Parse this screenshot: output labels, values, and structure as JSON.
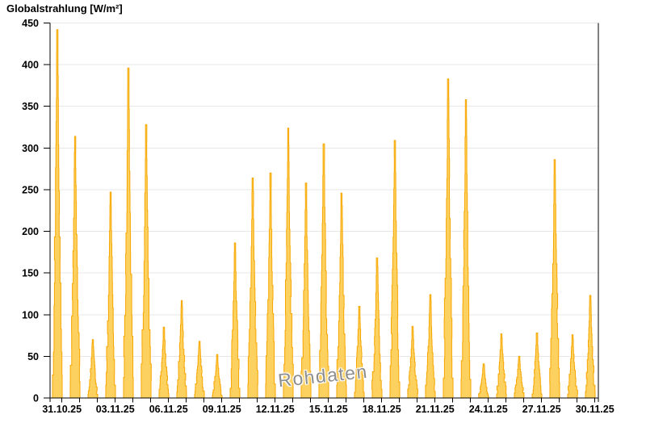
{
  "header": {
    "title": "Globalstrahlung [W/m²]"
  },
  "watermark": {
    "text": "Rohdaten",
    "color": "#8d8d8d"
  },
  "chart_data": {
    "type": "area",
    "title": "Globalstrahlung [W/m²]",
    "xlabel": "",
    "ylabel": "Globalstrahlung [W/m²]",
    "unit": "W/m²",
    "ylim": [
      0,
      450
    ],
    "ytick_step": 50,
    "ytick_labels": [
      "0",
      "50",
      "100",
      "150",
      "200",
      "250",
      "300",
      "350",
      "400",
      "450"
    ],
    "grid": true,
    "legend": "none",
    "xtick_label_every": 3,
    "xtick_labels_shown": [
      "31.10.25",
      "03.11.25",
      "06.11.25",
      "09.11.25",
      "12.11.25",
      "15.11.25",
      "18.11.25",
      "21.11.25",
      "24.11.25",
      "27.11.25",
      "30.11.25"
    ],
    "x": [
      "31.10.25",
      "01.11.25",
      "02.11.25",
      "03.11.25",
      "04.11.25",
      "05.11.25",
      "06.11.25",
      "07.11.25",
      "08.11.25",
      "09.11.25",
      "10.11.25",
      "11.11.25",
      "12.11.25",
      "13.11.25",
      "14.11.25",
      "15.11.25",
      "16.11.25",
      "17.11.25",
      "18.11.25",
      "19.11.25",
      "20.11.25",
      "21.11.25",
      "22.11.25",
      "23.11.25",
      "24.11.25",
      "25.11.25",
      "26.11.25",
      "27.11.25",
      "28.11.25",
      "29.11.25",
      "30.11.25"
    ],
    "values": [
      442,
      314,
      70,
      247,
      396,
      328,
      85,
      117,
      68,
      52,
      186,
      264,
      270,
      324,
      258,
      305,
      246,
      110,
      168,
      309,
      86,
      124,
      383,
      358,
      41,
      77,
      50,
      78,
      286,
      76,
      123
    ],
    "colors": {
      "fill": "#FCD160",
      "stroke": "#F7A600",
      "grid": "#e7e7e7",
      "axis": "#000000",
      "tick_label": "#000000"
    }
  }
}
